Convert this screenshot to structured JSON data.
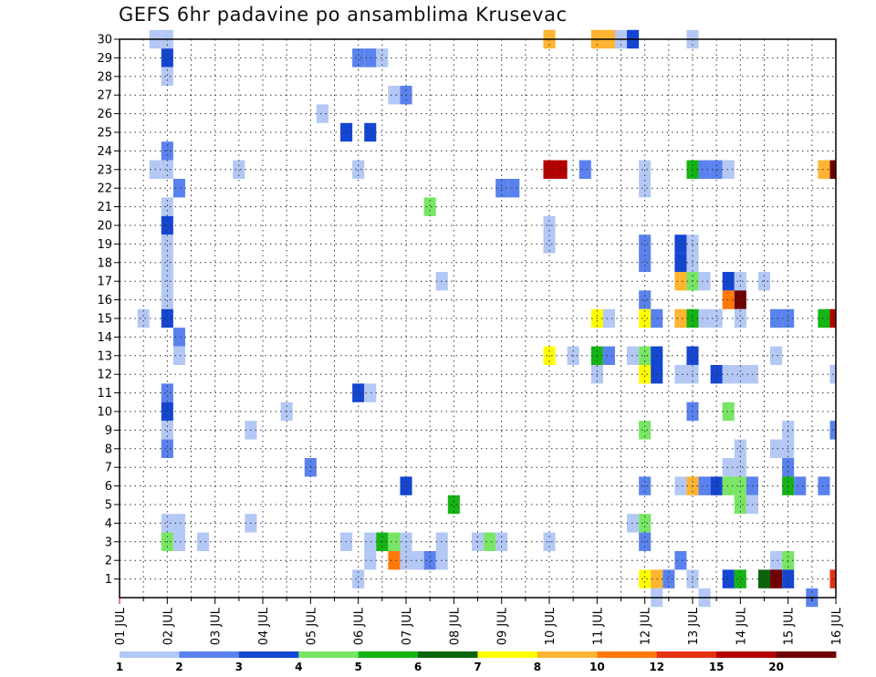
{
  "title": "GEFS 6hr padavine po ansamblima Krusevac",
  "chart_data": {
    "type": "heatmap",
    "title": "GEFS 6hr padavine po ansamblima Krusevac",
    "x_ticks": [
      "01 JUL",
      "02 JUL",
      "03 JUL",
      "04 JUL",
      "05 JUL",
      "06 JUL",
      "07 JUL",
      "08 JUL",
      "09 JUL",
      "10 JUL",
      "11 JUL",
      "12 JUL",
      "13 JUL",
      "14 JUL",
      "15 JUL",
      "16 JUL"
    ],
    "y_ticks": [
      1,
      2,
      3,
      4,
      5,
      6,
      7,
      8,
      9,
      10,
      11,
      12,
      13,
      14,
      15,
      16,
      17,
      18,
      19,
      20,
      21,
      22,
      23,
      24,
      25,
      26,
      27,
      28,
      29,
      30
    ],
    "x_range": [
      "01 JUL",
      "16 JUL"
    ],
    "y_range": [
      0,
      30
    ],
    "grid": "dotted",
    "legend_placement": "bottom",
    "colorbar": {
      "labels": [
        "1",
        "2",
        "3",
        "4",
        "5",
        "6",
        "7",
        "8",
        "10",
        "12",
        "15",
        "20"
      ],
      "colors": [
        "#b4c8f5",
        "#5a82ee",
        "#1446d2",
        "#78e664",
        "#14b414",
        "#0a640a",
        "#ffff00",
        "#ffb432",
        "#ff780a",
        "#e63214",
        "#b40000",
        "#6e0000"
      ]
    },
    "cells": [
      {
        "m": 30,
        "d": 1.75,
        "c": 0
      },
      {
        "m": 30,
        "d": 2.0,
        "c": 0
      },
      {
        "m": 30,
        "d": 10.0,
        "c": 7
      },
      {
        "m": 30,
        "d": 11.0,
        "c": 7
      },
      {
        "m": 30,
        "d": 11.25,
        "c": 7
      },
      {
        "m": 30,
        "d": 11.5,
        "c": 0
      },
      {
        "m": 30,
        "d": 11.75,
        "c": 2
      },
      {
        "m": 30,
        "d": 13.0,
        "c": 0
      },
      {
        "m": 29,
        "d": 2.0,
        "c": 2
      },
      {
        "m": 29,
        "d": 6.0,
        "c": 1
      },
      {
        "m": 29,
        "d": 6.25,
        "c": 1
      },
      {
        "m": 29,
        "d": 6.5,
        "c": 0
      },
      {
        "m": 28,
        "d": 2.0,
        "c": 0
      },
      {
        "m": 27,
        "d": 6.75,
        "c": 0
      },
      {
        "m": 27,
        "d": 7.0,
        "c": 1
      },
      {
        "m": 26,
        "d": 5.25,
        "c": 0
      },
      {
        "m": 25,
        "d": 5.75,
        "c": 2
      },
      {
        "m": 25,
        "d": 6.25,
        "c": 2
      },
      {
        "m": 24,
        "d": 2.0,
        "c": 1
      },
      {
        "m": 23,
        "d": 1.75,
        "c": 0
      },
      {
        "m": 23,
        "d": 2.0,
        "c": 0
      },
      {
        "m": 23,
        "d": 3.5,
        "c": 0
      },
      {
        "m": 23,
        "d": 6.0,
        "c": 0
      },
      {
        "m": 23,
        "d": 10.0,
        "c": 10
      },
      {
        "m": 23,
        "d": 10.25,
        "c": 10
      },
      {
        "m": 23,
        "d": 10.75,
        "c": 1
      },
      {
        "m": 23,
        "d": 12.0,
        "c": 0
      },
      {
        "m": 23,
        "d": 13.0,
        "c": 4
      },
      {
        "m": 23,
        "d": 13.25,
        "c": 1
      },
      {
        "m": 23,
        "d": 13.5,
        "c": 1
      },
      {
        "m": 23,
        "d": 13.75,
        "c": 0
      },
      {
        "m": 23,
        "d": 15.75,
        "c": 7
      },
      {
        "m": 23,
        "d": 16.0,
        "c": 11
      },
      {
        "m": 22,
        "d": 2.25,
        "c": 1
      },
      {
        "m": 22,
        "d": 9.0,
        "c": 1
      },
      {
        "m": 22,
        "d": 9.25,
        "c": 1
      },
      {
        "m": 22,
        "d": 12.0,
        "c": 0
      },
      {
        "m": 21,
        "d": 2.0,
        "c": 0
      },
      {
        "m": 21,
        "d": 7.5,
        "c": 3
      },
      {
        "m": 20,
        "d": 2.0,
        "c": 2
      },
      {
        "m": 20,
        "d": 10.0,
        "c": 0
      },
      {
        "m": 19,
        "d": 2.0,
        "c": 0
      },
      {
        "m": 19,
        "d": 10.0,
        "c": 0
      },
      {
        "m": 19,
        "d": 12.0,
        "c": 1
      },
      {
        "m": 19,
        "d": 12.75,
        "c": 2
      },
      {
        "m": 19,
        "d": 13.0,
        "c": 0
      },
      {
        "m": 18,
        "d": 2.0,
        "c": 0
      },
      {
        "m": 18,
        "d": 12.0,
        "c": 1
      },
      {
        "m": 18,
        "d": 12.75,
        "c": 2
      },
      {
        "m": 18,
        "d": 13.0,
        "c": 0
      },
      {
        "m": 17,
        "d": 2.0,
        "c": 0
      },
      {
        "m": 17,
        "d": 7.75,
        "c": 0
      },
      {
        "m": 17,
        "d": 12.75,
        "c": 7
      },
      {
        "m": 17,
        "d": 13.0,
        "c": 3
      },
      {
        "m": 17,
        "d": 13.25,
        "c": 0
      },
      {
        "m": 17,
        "d": 13.75,
        "c": 2
      },
      {
        "m": 17,
        "d": 14.0,
        "c": 0
      },
      {
        "m": 17,
        "d": 14.5,
        "c": 0
      },
      {
        "m": 16,
        "d": 2.0,
        "c": 0
      },
      {
        "m": 16,
        "d": 12.0,
        "c": 1
      },
      {
        "m": 16,
        "d": 13.75,
        "c": 8
      },
      {
        "m": 16,
        "d": 14.0,
        "c": 11
      },
      {
        "m": 15,
        "d": 1.5,
        "c": 0
      },
      {
        "m": 15,
        "d": 2.0,
        "c": 2
      },
      {
        "m": 15,
        "d": 11.0,
        "c": 6
      },
      {
        "m": 15,
        "d": 11.25,
        "c": 0
      },
      {
        "m": 15,
        "d": 12.0,
        "c": 6
      },
      {
        "m": 15,
        "d": 12.25,
        "c": 1
      },
      {
        "m": 15,
        "d": 12.75,
        "c": 7
      },
      {
        "m": 15,
        "d": 13.0,
        "c": 4
      },
      {
        "m": 15,
        "d": 13.25,
        "c": 0
      },
      {
        "m": 15,
        "d": 13.5,
        "c": 0
      },
      {
        "m": 15,
        "d": 14.0,
        "c": 0
      },
      {
        "m": 15,
        "d": 14.75,
        "c": 1
      },
      {
        "m": 15,
        "d": 15.0,
        "c": 1
      },
      {
        "m": 15,
        "d": 15.75,
        "c": 4
      },
      {
        "m": 15,
        "d": 16.0,
        "c": 10
      },
      {
        "m": 14,
        "d": 2.25,
        "c": 1
      },
      {
        "m": 13,
        "d": 2.25,
        "c": 0
      },
      {
        "m": 13,
        "d": 10.0,
        "c": 6
      },
      {
        "m": 13,
        "d": 10.5,
        "c": 0
      },
      {
        "m": 13,
        "d": 11.0,
        "c": 4
      },
      {
        "m": 13,
        "d": 11.25,
        "c": 1
      },
      {
        "m": 13,
        "d": 11.75,
        "c": 0
      },
      {
        "m": 13,
        "d": 12.0,
        "c": 3
      },
      {
        "m": 13,
        "d": 12.25,
        "c": 2
      },
      {
        "m": 13,
        "d": 13.0,
        "c": 2
      },
      {
        "m": 13,
        "d": 14.75,
        "c": 0
      },
      {
        "m": 12,
        "d": 11.0,
        "c": 0
      },
      {
        "m": 12,
        "d": 12.0,
        "c": 6
      },
      {
        "m": 12,
        "d": 12.25,
        "c": 2
      },
      {
        "m": 12,
        "d": 12.75,
        "c": 0
      },
      {
        "m": 12,
        "d": 13.0,
        "c": 0
      },
      {
        "m": 12,
        "d": 13.5,
        "c": 2
      },
      {
        "m": 12,
        "d": 13.75,
        "c": 0
      },
      {
        "m": 12,
        "d": 14.0,
        "c": 0
      },
      {
        "m": 12,
        "d": 14.25,
        "c": 0
      },
      {
        "m": 12,
        "d": 16.0,
        "c": 0
      },
      {
        "m": 11,
        "d": 2.0,
        "c": 1
      },
      {
        "m": 11,
        "d": 6.0,
        "c": 2
      },
      {
        "m": 11,
        "d": 6.25,
        "c": 0
      },
      {
        "m": 10,
        "d": 2.0,
        "c": 2
      },
      {
        "m": 10,
        "d": 4.5,
        "c": 0
      },
      {
        "m": 10,
        "d": 13.0,
        "c": 1
      },
      {
        "m": 10,
        "d": 13.75,
        "c": 3
      },
      {
        "m": 9,
        "d": 2.0,
        "c": 0
      },
      {
        "m": 9,
        "d": 3.75,
        "c": 0
      },
      {
        "m": 9,
        "d": 12.0,
        "c": 3
      },
      {
        "m": 9,
        "d": 15.0,
        "c": 0
      },
      {
        "m": 9,
        "d": 16.0,
        "c": 1
      },
      {
        "m": 8,
        "d": 2.0,
        "c": 1
      },
      {
        "m": 8,
        "d": 14.0,
        "c": 0
      },
      {
        "m": 8,
        "d": 14.75,
        "c": 0
      },
      {
        "m": 8,
        "d": 15.0,
        "c": 0
      },
      {
        "m": 7,
        "d": 5.0,
        "c": 1
      },
      {
        "m": 7,
        "d": 13.75,
        "c": 0
      },
      {
        "m": 7,
        "d": 14.0,
        "c": 0
      },
      {
        "m": 7,
        "d": 15.0,
        "c": 1
      },
      {
        "m": 6,
        "d": 7.0,
        "c": 2
      },
      {
        "m": 6,
        "d": 12.0,
        "c": 1
      },
      {
        "m": 6,
        "d": 12.75,
        "c": 0
      },
      {
        "m": 6,
        "d": 13.0,
        "c": 7
      },
      {
        "m": 6,
        "d": 13.25,
        "c": 1
      },
      {
        "m": 6,
        "d": 13.5,
        "c": 2
      },
      {
        "m": 6,
        "d": 13.75,
        "c": 3
      },
      {
        "m": 6,
        "d": 14.0,
        "c": 3
      },
      {
        "m": 6,
        "d": 14.25,
        "c": 1
      },
      {
        "m": 6,
        "d": 15.0,
        "c": 4
      },
      {
        "m": 6,
        "d": 15.25,
        "c": 1
      },
      {
        "m": 6,
        "d": 15.75,
        "c": 1
      },
      {
        "m": 5,
        "d": 8.0,
        "c": 4
      },
      {
        "m": 5,
        "d": 14.0,
        "c": 3
      },
      {
        "m": 5,
        "d": 14.25,
        "c": 0
      },
      {
        "m": 4,
        "d": 2.0,
        "c": 0
      },
      {
        "m": 4,
        "d": 2.25,
        "c": 0
      },
      {
        "m": 4,
        "d": 3.75,
        "c": 0
      },
      {
        "m": 4,
        "d": 11.75,
        "c": 0
      },
      {
        "m": 4,
        "d": 12.0,
        "c": 3
      },
      {
        "m": 3,
        "d": 2.0,
        "c": 3
      },
      {
        "m": 3,
        "d": 2.25,
        "c": 0
      },
      {
        "m": 3,
        "d": 2.75,
        "c": 0
      },
      {
        "m": 3,
        "d": 5.75,
        "c": 0
      },
      {
        "m": 3,
        "d": 6.25,
        "c": 0
      },
      {
        "m": 3,
        "d": 6.5,
        "c": 4
      },
      {
        "m": 3,
        "d": 6.75,
        "c": 3
      },
      {
        "m": 3,
        "d": 7.0,
        "c": 0
      },
      {
        "m": 3,
        "d": 7.75,
        "c": 0
      },
      {
        "m": 3,
        "d": 8.5,
        "c": 0
      },
      {
        "m": 3,
        "d": 8.75,
        "c": 3
      },
      {
        "m": 3,
        "d": 9.0,
        "c": 0
      },
      {
        "m": 3,
        "d": 10.0,
        "c": 0
      },
      {
        "m": 3,
        "d": 12.0,
        "c": 1
      },
      {
        "m": 2,
        "d": 6.25,
        "c": 0
      },
      {
        "m": 2,
        "d": 6.75,
        "c": 8
      },
      {
        "m": 2,
        "d": 7.0,
        "c": 0
      },
      {
        "m": 2,
        "d": 7.25,
        "c": 0
      },
      {
        "m": 2,
        "d": 7.5,
        "c": 1
      },
      {
        "m": 2,
        "d": 7.75,
        "c": 0
      },
      {
        "m": 2,
        "d": 12.75,
        "c": 1
      },
      {
        "m": 2,
        "d": 14.75,
        "c": 0
      },
      {
        "m": 2,
        "d": 15.0,
        "c": 3
      },
      {
        "m": 1,
        "d": 6.0,
        "c": 0
      },
      {
        "m": 1,
        "d": 12.0,
        "c": 6
      },
      {
        "m": 1,
        "d": 12.25,
        "c": 7
      },
      {
        "m": 1,
        "d": 12.5,
        "c": 1
      },
      {
        "m": 1,
        "d": 13.0,
        "c": 0
      },
      {
        "m": 1,
        "d": 13.75,
        "c": 2
      },
      {
        "m": 1,
        "d": 14.0,
        "c": 4
      },
      {
        "m": 1,
        "d": 14.5,
        "c": 5
      },
      {
        "m": 1,
        "d": 14.75,
        "c": 11
      },
      {
        "m": 1,
        "d": 15.0,
        "c": 2
      },
      {
        "m": 1,
        "d": 16.0,
        "c": 9
      },
      {
        "m": 0,
        "d": 12.25,
        "c": 0
      },
      {
        "m": 0,
        "d": 13.25,
        "c": 0
      },
      {
        "m": 0,
        "d": 15.5,
        "c": 1
      }
    ]
  }
}
